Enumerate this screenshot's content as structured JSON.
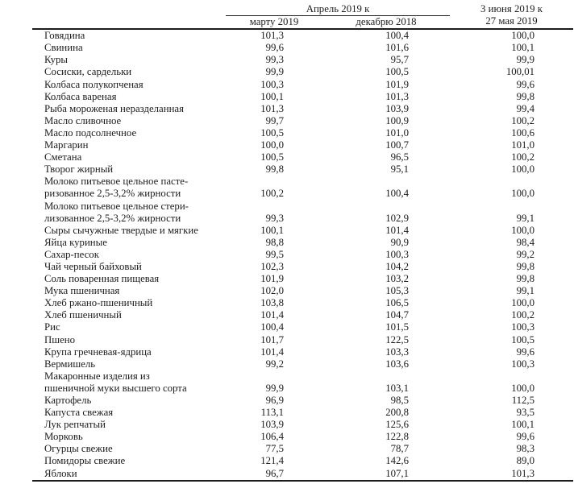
{
  "colors": {
    "background": "#ffffff",
    "ink": "#1c1c1c"
  },
  "table": {
    "header": {
      "group": "Апрель 2019 к",
      "col1": "марту 2019",
      "col2": "декабрю 2018",
      "col3_line1": "3 июня 2019 к",
      "col3_line2": "27 мая 2019"
    },
    "rows": [
      {
        "label": "Говядина",
        "v1": "101,3",
        "v2": "100,4",
        "v3": "100,0"
      },
      {
        "label": "Свинина",
        "v1": "99,6",
        "v2": "101,6",
        "v3": "100,1"
      },
      {
        "label": "Куры",
        "v1": "99,3",
        "v2": "95,7",
        "v3": "99,9"
      },
      {
        "label": "Сосиски, сардельки",
        "v1": "99,9",
        "v2": "100,5",
        "v3": "100,01"
      },
      {
        "label": "Колбаса полукопченая",
        "v1": "100,3",
        "v2": "101,9",
        "v3": "99,6"
      },
      {
        "label": "Колбаса вареная",
        "v1": "100,1",
        "v2": "101,3",
        "v3": "99,8"
      },
      {
        "label": "Рыба мороженая неразделанная",
        "v1": "101,3",
        "v2": "103,9",
        "v3": "99,4"
      },
      {
        "label": "Масло сливочное",
        "v1": "99,7",
        "v2": "100,9",
        "v3": "100,2"
      },
      {
        "label": "Масло подсолнечное",
        "v1": "100,5",
        "v2": "101,0",
        "v3": "100,6"
      },
      {
        "label": "Маргарин",
        "v1": "100,0",
        "v2": "100,7",
        "v3": "101,0"
      },
      {
        "label": "Сметана",
        "v1": "100,5",
        "v2": "96,5",
        "v3": "100,2"
      },
      {
        "label": "Творог жирный",
        "v1": "99,8",
        "v2": "95,1",
        "v3": "100,0"
      },
      {
        "label": "Молоко питьевое цельное пасте-\nризованное 2,5-3,2% жирности",
        "v1": "100,2",
        "v2": "100,4",
        "v3": "100,0"
      },
      {
        "label": "Молоко питьевое цельное стери-\nлизованное 2,5-3,2% жирности",
        "v1": "99,3",
        "v2": "102,9",
        "v3": "99,1"
      },
      {
        "label": "Сыры сычужные твердые и мягкие",
        "v1": "100,1",
        "v2": "101,4",
        "v3": "100,0"
      },
      {
        "label": "Яйца куриные",
        "v1": "98,8",
        "v2": "90,9",
        "v3": "98,4"
      },
      {
        "label": "Сахар-песок",
        "v1": "99,5",
        "v2": "100,3",
        "v3": "99,2"
      },
      {
        "label": "Чай черный байховый",
        "v1": "102,3",
        "v2": "104,2",
        "v3": "99,8"
      },
      {
        "label": "Соль поваренная пищевая",
        "v1": "101,9",
        "v2": "103,2",
        "v3": "99,8"
      },
      {
        "label": "Мука пшеничная",
        "v1": "102,0",
        "v2": "105,3",
        "v3": "99,1"
      },
      {
        "label": "Хлеб ржано-пшеничный",
        "v1": "103,8",
        "v2": "106,5",
        "v3": "100,0"
      },
      {
        "label": "Хлеб пшеничный",
        "v1": "101,4",
        "v2": "104,7",
        "v3": "100,2"
      },
      {
        "label": "Рис",
        "v1": "100,4",
        "v2": "101,5",
        "v3": "100,3"
      },
      {
        "label": "Пшено",
        "v1": "101,7",
        "v2": "122,5",
        "v3": "100,5"
      },
      {
        "label": "Крупа гречневая-ядрица",
        "v1": "101,4",
        "v2": "103,3",
        "v3": "99,6"
      },
      {
        "label": "Вермишель",
        "v1": "99,2",
        "v2": "103,6",
        "v3": "100,3"
      },
      {
        "label": "Макаронные изделия из\nпшеничной муки высшего сорта",
        "v1": "99,9",
        "v2": "103,1",
        "v3": "100,0"
      },
      {
        "label": "Картофель",
        "v1": "96,9",
        "v2": "98,5",
        "v3": "112,5"
      },
      {
        "label": "Капуста свежая",
        "v1": "113,1",
        "v2": "200,8",
        "v3": "93,5"
      },
      {
        "label": "Лук репчатый",
        "v1": "103,9",
        "v2": "125,6",
        "v3": "100,1"
      },
      {
        "label": "Морковь",
        "v1": "106,4",
        "v2": "122,8",
        "v3": "99,6"
      },
      {
        "label": "Огурцы свежие",
        "v1": "77,5",
        "v2": "78,7",
        "v3": "98,3"
      },
      {
        "label": "Помидоры свежие",
        "v1": "121,4",
        "v2": "142,6",
        "v3": "89,0"
      },
      {
        "label": "Яблоки",
        "v1": "96,7",
        "v2": "107,1",
        "v3": "101,3"
      }
    ]
  }
}
